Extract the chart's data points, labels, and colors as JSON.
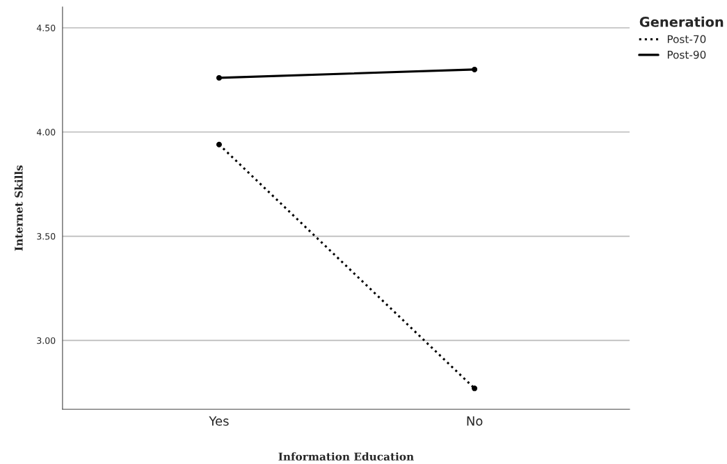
{
  "chart_data": {
    "type": "line",
    "xlabel": "Information Education",
    "ylabel": "Internet Skills",
    "legend_title": "Generation",
    "categories": [
      "Yes",
      "No"
    ],
    "series": [
      {
        "name": "Post-70",
        "color": "#000000",
        "values": [
          3.94,
          2.77
        ],
        "line_style": "dotted"
      },
      {
        "name": "Post-90",
        "color": "#000000",
        "values": [
          4.26,
          4.3
        ],
        "line_style": "solid"
      }
    ],
    "ylim": [
      2.67,
      4.6
    ],
    "yticks": [
      {
        "value": 3.0,
        "label": "3.00"
      },
      {
        "value": 3.5,
        "label": "3.50"
      },
      {
        "value": 4.0,
        "label": "4.00"
      },
      {
        "value": 4.5,
        "label": "4.50"
      }
    ],
    "grid": "y",
    "legend": "top right",
    "marker": "circle"
  }
}
